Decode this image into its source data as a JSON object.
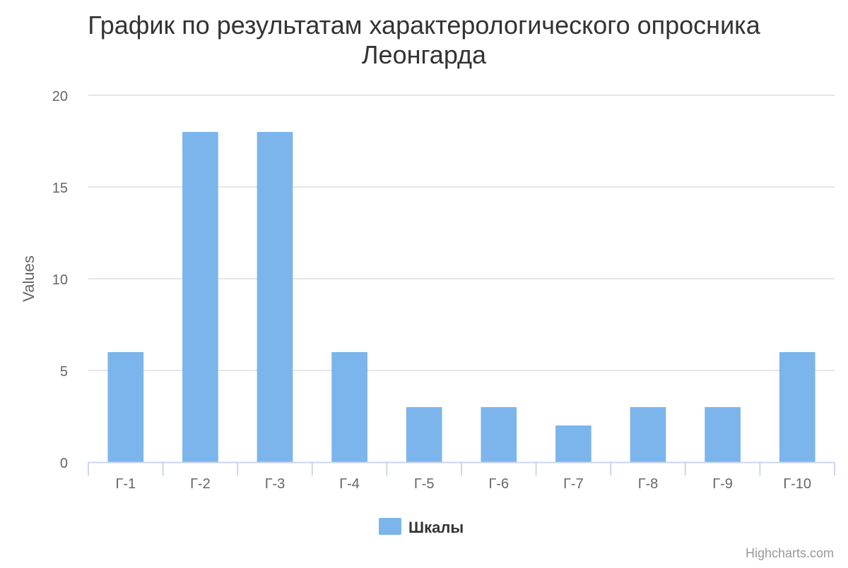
{
  "chart_data": {
    "type": "bar",
    "title_lines": [
      "График по результатам характерологического опросника",
      "Леонгарда"
    ],
    "xlabel": "",
    "ylabel": "Values",
    "categories": [
      "Г-1",
      "Г-2",
      "Г-3",
      "Г-4",
      "Г-5",
      "Г-6",
      "Г-7",
      "Г-8",
      "Г-9",
      "Г-10"
    ],
    "series": [
      {
        "name": "Шкалы",
        "values": [
          6,
          18,
          18,
          6,
          3,
          3,
          2,
          3,
          3,
          6
        ],
        "color": "#7cb5ec"
      }
    ],
    "ylim": [
      0,
      20
    ],
    "yticks": [
      0,
      5,
      10,
      15,
      20
    ],
    "grid": true,
    "legend_position": "bottom-center"
  },
  "credits": "Highcharts.com"
}
